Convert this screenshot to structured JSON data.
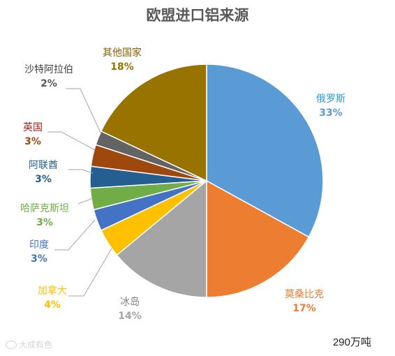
{
  "chart_data": {
    "type": "pie",
    "title": "欧盟进口铝来源",
    "slices": [
      {
        "name": "俄罗斯",
        "pct_label": "33%",
        "value": 33,
        "color": "#5B9BD5"
      },
      {
        "name": "莫桑比克",
        "pct_label": "17%",
        "value": 17,
        "color": "#ED7D31"
      },
      {
        "name": "冰岛",
        "pct_label": "14%",
        "value": 14,
        "color": "#A5A5A5"
      },
      {
        "name": "加拿大",
        "pct_label": "4%",
        "value": 4,
        "color": "#FFC000"
      },
      {
        "name": "印度",
        "pct_label": "3%",
        "value": 3,
        "color": "#4472C4"
      },
      {
        "name": "哈萨克斯坦",
        "pct_label": "3%",
        "value": 3,
        "color": "#70AD47"
      },
      {
        "name": "阿联酋",
        "pct_label": "3%",
        "value": 3,
        "color": "#255E91"
      },
      {
        "name": "英国",
        "pct_label": "3%",
        "value": 3,
        "color": "#9E480E"
      },
      {
        "name": "沙特阿拉伯",
        "pct_label": "2%",
        "value": 2,
        "color": "#636363"
      },
      {
        "name": "其他国家",
        "pct_label": "18%",
        "value": 18,
        "color": "#997300"
      }
    ],
    "name_colors": [
      "#2E9BD6",
      "#ED7D31",
      "#808080",
      "#FFC000",
      "#4472C4",
      "#70AD47",
      "#255E91",
      "#9E1B1B",
      "#404040",
      "#7F6000"
    ],
    "pct_colors": [
      "#5B9BD5",
      "#ED7D31",
      "#A5A5A5",
      "#FFC000",
      "#4472C4",
      "#70AD47",
      "#255E91",
      "#9E480E",
      "#595959",
      "#997300"
    ]
  },
  "note": "290万吨",
  "watermark": "大成有色"
}
